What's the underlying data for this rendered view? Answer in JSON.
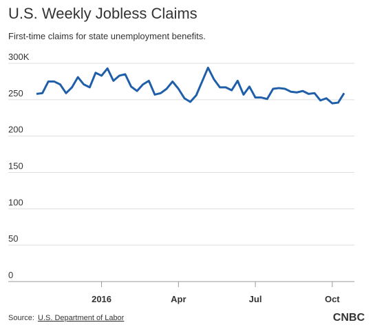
{
  "chart_data": {
    "type": "line",
    "title": "U.S. Weekly Jobless Claims",
    "subtitle": "First-time claims for state unemployment benefits.",
    "categories": [
      null,
      null,
      null,
      null,
      null,
      null,
      null,
      null,
      null,
      null,
      null,
      "2016",
      null,
      null,
      null,
      null,
      null,
      null,
      null,
      null,
      null,
      null,
      null,
      null,
      "Apr",
      null,
      null,
      null,
      null,
      null,
      null,
      null,
      null,
      null,
      null,
      null,
      null,
      "Jul",
      null,
      null,
      null,
      null,
      null,
      null,
      null,
      null,
      null,
      null,
      null,
      null,
      "Oct",
      null,
      null
    ],
    "series": [
      {
        "color": "#1f5ea8",
        "values": [
          258,
          259,
          275,
          275,
          271,
          259,
          267,
          281,
          271,
          267,
          287,
          283,
          293,
          276,
          283,
          285,
          268,
          262,
          271,
          276,
          257,
          259,
          265,
          275,
          265,
          252,
          247,
          256,
          275,
          294,
          278,
          267,
          267,
          263,
          276,
          257,
          268,
          253,
          253,
          251,
          265,
          266,
          265,
          261,
          260,
          262,
          258,
          259,
          249,
          252,
          245,
          246,
          259
        ]
      }
    ],
    "ylim": [
      0,
      300
    ],
    "yticks": [
      0,
      50,
      100,
      150,
      200,
      250,
      {
        "value": 300,
        "label": "300K"
      }
    ],
    "grid": true
  },
  "source": {
    "label": "Source:",
    "link": "U.S. Department of Labor"
  },
  "logo": "CNBC"
}
